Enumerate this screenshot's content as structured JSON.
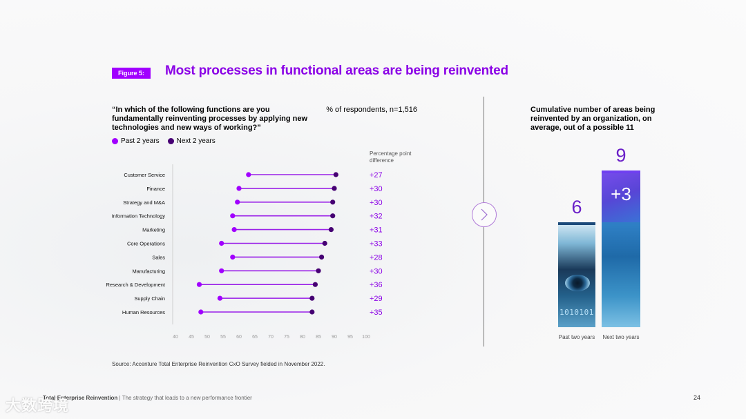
{
  "figure": {
    "badge": "Figure 5:",
    "title": "Most processes in functional areas are being reinvented"
  },
  "left_panel": {
    "question": "“In which of the following functions are you fundamentally reinventing processes by applying new technologies and new ways of working?”",
    "pct_label": "% of respondents, n=1,516",
    "ppd_label": "Percentage point difference",
    "legend": {
      "past": "Past 2 years",
      "next": "Next 2 years"
    }
  },
  "colors": {
    "past": "#a100ff",
    "next": "#460073",
    "accent": "#8a00e6"
  },
  "chart_data": [
    {
      "type": "dumbbell",
      "title": "Most processes in functional areas are being reinvented",
      "xlabel": "% of respondents",
      "xlim": [
        40,
        100
      ],
      "xticks": [
        40,
        45,
        50,
        55,
        60,
        65,
        70,
        75,
        80,
        85,
        90,
        95,
        100
      ],
      "categories": [
        "Customer Service",
        "Finance",
        "Strategy and M&A",
        "Information Technology",
        "Marketing",
        "Core Operations",
        "Sales",
        "Manufacturing",
        "Research & Development",
        "Supply Chain",
        "Human Resources"
      ],
      "series": [
        {
          "name": "Past 2 years",
          "values": [
            63,
            60,
            59.5,
            58,
            58.5,
            54.5,
            58,
            54.5,
            47.5,
            54,
            48
          ]
        },
        {
          "name": "Next 2 years",
          "values": [
            90.5,
            90,
            89.5,
            89.5,
            89,
            87,
            86,
            85,
            84,
            83,
            83
          ]
        }
      ],
      "differences": [
        "+27",
        "+30",
        "+30",
        "+32",
        "+31",
        "+33",
        "+28",
        "+30",
        "+36",
        "+29",
        "+35"
      ]
    },
    {
      "type": "bar",
      "title": "Cumulative number of areas being reinvented by an organization, on average, out of a possible 11",
      "categories": [
        "Past two years",
        "Next two years"
      ],
      "values": [
        6,
        9
      ],
      "annotation": "+3",
      "ylim": [
        0,
        11
      ]
    }
  ],
  "source": "Source: Accenture Total Enterprise Reinvention CxO Survey fielded in November 2022.",
  "footer": {
    "brand": "Total Enterprise Reinvention",
    "separator": " | ",
    "tagline": "The strategy that leads to a new performance frontier"
  },
  "page_number": "24",
  "watermark": "大数跨境",
  "binary_text": "1010101"
}
